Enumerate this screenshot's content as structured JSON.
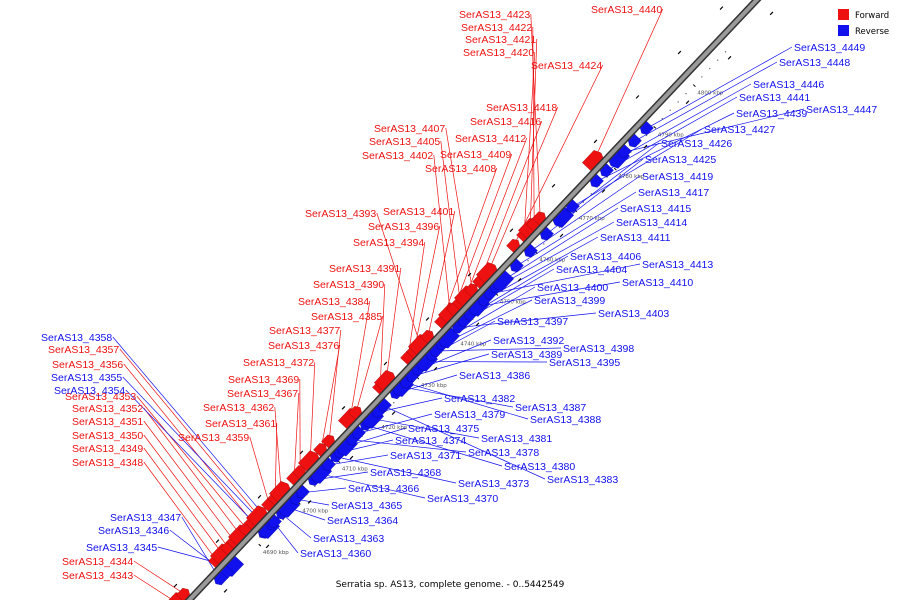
{
  "caption": "Serratia sp. AS13, complete genome. - 0..5442549",
  "legend": {
    "forward_label": "Forward",
    "reverse_label": "Reverse"
  },
  "colors": {
    "forward": "#ee1111",
    "reverse": "#1111ee",
    "backbone": "#808080",
    "backbone_edge": "#333333"
  },
  "ticks": [
    "4690 kbp",
    "4700 kbp",
    "4710 kbp",
    "4720 kbp",
    "4730 kbp",
    "4740 kbp",
    "4750 kbp",
    "4760 kbp",
    "4770 kbp",
    "4780 kbp",
    "4790 kbp",
    "4800 kbp"
  ],
  "forward_genes": [
    "SerAS13_4343",
    "SerAS13_4344",
    "SerAS13_4348",
    "SerAS13_4349",
    "SerAS13_4350",
    "SerAS13_4351",
    "SerAS13_4352",
    "SerAS13_4353",
    "SerAS13_4356",
    "SerAS13_4357",
    "SerAS13_4359",
    "SerAS13_4361",
    "SerAS13_4362",
    "SerAS13_4367",
    "SerAS13_4369",
    "SerAS13_4372",
    "SerAS13_4376",
    "SerAS13_4377",
    "SerAS13_4384",
    "SerAS13_4385",
    "SerAS13_4390",
    "SerAS13_4391",
    "SerAS13_4394",
    "SerAS13_4396",
    "SerAS13_4393",
    "SerAS13_4401",
    "SerAS13_4408",
    "SerAS13_4402",
    "SerAS13_4409",
    "SerAS13_4405",
    "SerAS13_4412",
    "SerAS13_4407",
    "SerAS13_4416",
    "SerAS13_4418",
    "SerAS13_4424",
    "SerAS13_4420",
    "SerAS13_4421",
    "SerAS13_4422",
    "SerAS13_4423",
    "SerAS13_4440"
  ],
  "reverse_genes": [
    "SerAS13_4345",
    "SerAS13_4346",
    "SerAS13_4347",
    "SerAS13_4354",
    "SerAS13_4355",
    "SerAS13_4358",
    "SerAS13_4360",
    "SerAS13_4363",
    "SerAS13_4364",
    "SerAS13_4365",
    "SerAS13_4366",
    "SerAS13_4368",
    "SerAS13_4370",
    "SerAS13_4371",
    "SerAS13_4373",
    "SerAS13_4374",
    "SerAS13_4375",
    "SerAS13_4378",
    "SerAS13_4379",
    "SerAS13_4380",
    "SerAS13_4381",
    "SerAS13_4382",
    "SerAS13_4383",
    "SerAS13_4386",
    "SerAS13_4387",
    "SerAS13_4388",
    "SerAS13_4389",
    "SerAS13_4392",
    "SerAS13_4395",
    "SerAS13_4397",
    "SerAS13_4398",
    "SerAS13_4399",
    "SerAS13_4400",
    "SerAS13_4403",
    "SerAS13_4404",
    "SerAS13_4406",
    "SerAS13_4410",
    "SerAS13_4411",
    "SerAS13_4413",
    "SerAS13_4414",
    "SerAS13_4415",
    "SerAS13_4417",
    "SerAS13_4419",
    "SerAS13_4425",
    "SerAS13_4426",
    "SerAS13_4427",
    "SerAS13_4439",
    "SerAS13_4441",
    "SerAS13_4446",
    "SerAS13_4447",
    "SerAS13_4448",
    "SerAS13_4449"
  ]
}
